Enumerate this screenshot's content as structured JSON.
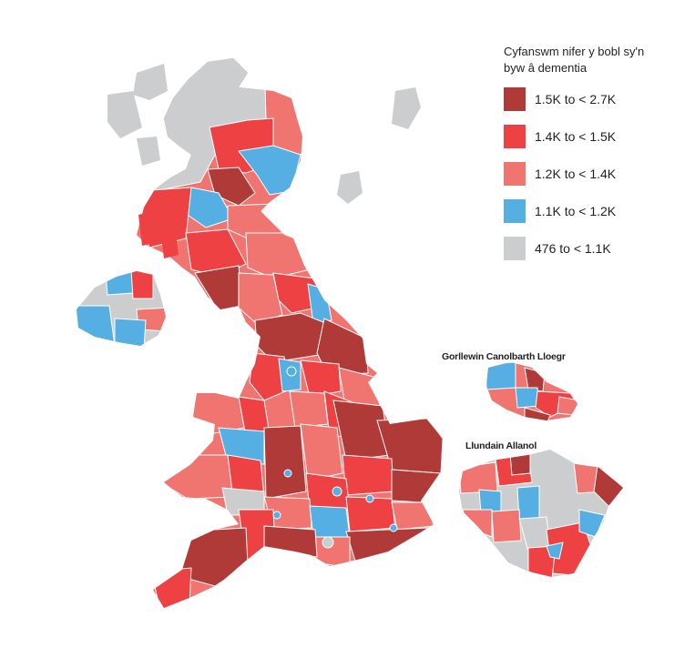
{
  "legend": {
    "title_line1": "Cyfanswm nifer y bobl sy'n",
    "title_line2": "byw â dementia",
    "items": [
      {
        "label": "1.5K to < 2.7K",
        "color": "#b03a37"
      },
      {
        "label": "1.4K to < 1.5K",
        "color": "#ee4144"
      },
      {
        "label": "1.2K to < 1.4K",
        "color": "#f07470"
      },
      {
        "label": "1.1K to < 1.2K",
        "color": "#55afe2"
      },
      {
        "label": "476 to < 1.1K",
        "color": "#cccdcf"
      }
    ]
  },
  "insets": {
    "west_midlands_title": "Gorllewin Canolbarth Lloegr",
    "london_title": "Llundain Allanol"
  },
  "colors": {
    "dark_red": "#b03a37",
    "red": "#ee4144",
    "light_red": "#f07470",
    "blue": "#55afe2",
    "grey": "#cccdcf",
    "border": "#ffffff"
  }
}
